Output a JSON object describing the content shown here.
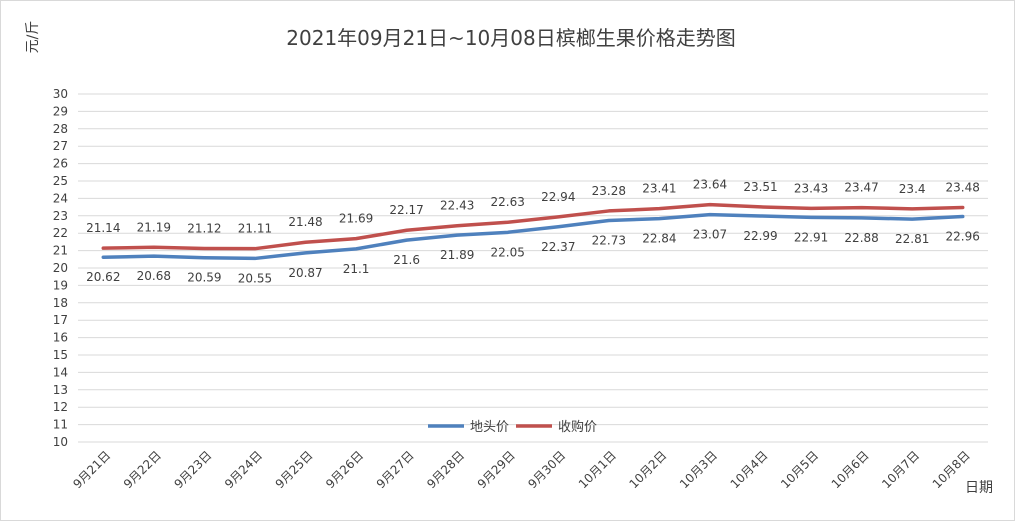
{
  "chart_data": {
    "type": "line",
    "title": "2021年09月21日~10月08日槟榔生果价格走势图",
    "ylabel": "元/斤",
    "xlabel": "日期",
    "ylim": [
      10,
      30
    ],
    "yticks": [
      10,
      11,
      12,
      13,
      14,
      15,
      16,
      17,
      18,
      19,
      20,
      21,
      22,
      23,
      24,
      25,
      26,
      27,
      28,
      29,
      30
    ],
    "grid": true,
    "legend_position": "bottom-center",
    "categories": [
      "9月21日",
      "9月22日",
      "9月23日",
      "9月24日",
      "9月25日",
      "9月26日",
      "9月27日",
      "9月28日",
      "9月29日",
      "9月30日",
      "10月1日",
      "10月2日",
      "10月3日",
      "10月4日",
      "10月5日",
      "10月6日",
      "10月7日",
      "10月8日"
    ],
    "series": [
      {
        "name": "地头价",
        "color": "#4f81bd",
        "values": [
          20.62,
          20.68,
          20.59,
          20.55,
          20.87,
          21.1,
          21.6,
          21.89,
          22.05,
          22.37,
          22.73,
          22.84,
          23.07,
          22.99,
          22.91,
          22.88,
          22.81,
          22.96
        ]
      },
      {
        "name": "收购价",
        "color": "#c0504d",
        "values": [
          21.14,
          21.19,
          21.12,
          21.11,
          21.48,
          21.69,
          22.17,
          22.43,
          22.63,
          22.94,
          23.28,
          23.41,
          23.64,
          23.51,
          23.43,
          23.47,
          23.4,
          23.48
        ]
      }
    ]
  }
}
